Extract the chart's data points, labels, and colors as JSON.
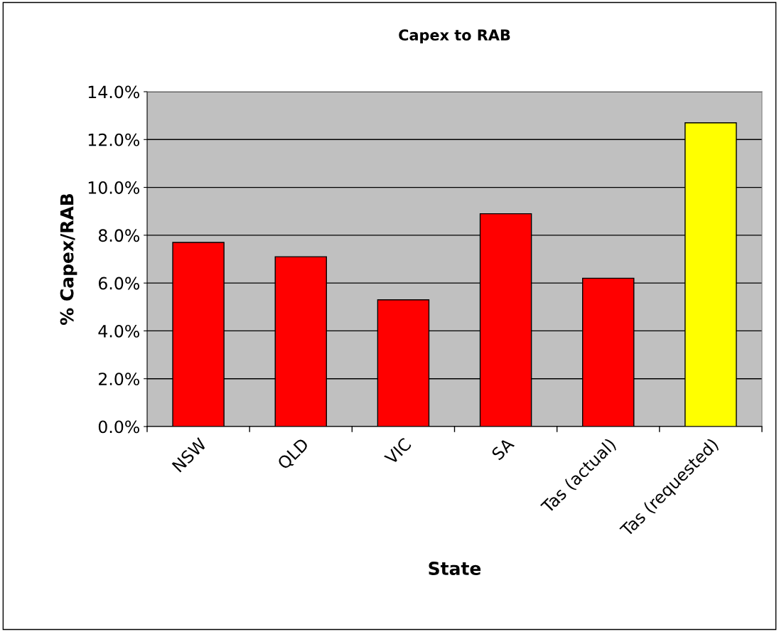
{
  "chart_data": {
    "type": "bar",
    "title": "Capex to RAB",
    "xlabel": "State",
    "ylabel": "% Capex/RAB",
    "categories": [
      "NSW",
      "QLD",
      "VIC",
      "SA",
      "Tas (actual)",
      "Tas (requested)"
    ],
    "values": [
      7.7,
      7.1,
      5.3,
      8.9,
      6.2,
      12.7
    ],
    "colors": [
      "#ff0000",
      "#ff0000",
      "#ff0000",
      "#ff0000",
      "#ff0000",
      "#ffff00"
    ],
    "ylim": [
      0,
      14
    ],
    "yticks": [
      {
        "value": 0,
        "label": "0.0%"
      },
      {
        "value": 2,
        "label": "2.0%"
      },
      {
        "value": 4,
        "label": "4.0%"
      },
      {
        "value": 6,
        "label": "6.0%"
      },
      {
        "value": 8,
        "label": "8.0%"
      },
      {
        "value": 10,
        "label": "10.0%"
      },
      {
        "value": 12,
        "label": "12.0%"
      },
      {
        "value": 14,
        "label": "14.0%"
      }
    ],
    "grid": "y",
    "legend": false
  }
}
